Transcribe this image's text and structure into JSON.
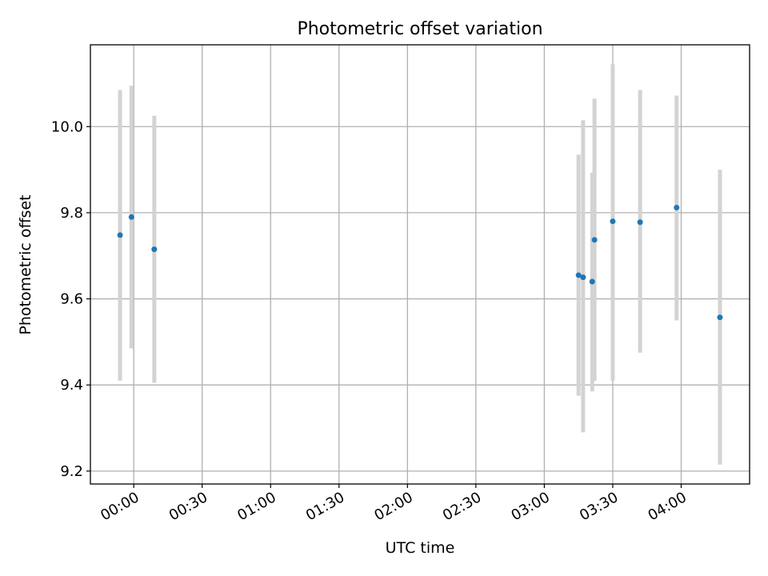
{
  "chart_data": {
    "type": "scatter",
    "title": "Photometric offset variation",
    "xlabel": "UTC time",
    "ylabel": "Photometric offset",
    "x_axis": "time",
    "xlim": [
      "23:41",
      "04:30"
    ],
    "ylim": [
      9.17,
      10.19
    ],
    "grid": true,
    "x_ticks": [
      "00:00",
      "00:30",
      "01:00",
      "01:30",
      "02:00",
      "02:30",
      "03:00",
      "03:30",
      "04:00"
    ],
    "y_ticks": [
      9.2,
      9.4,
      9.6,
      9.8,
      10.0
    ],
    "colors": {
      "marker": "#1f77b4",
      "errorbar": "#d3d3d3",
      "grid": "#b0b0b0"
    },
    "series": [
      {
        "points": [
          {
            "x": "23:54",
            "y": 9.748,
            "ylow": 9.41,
            "yhigh": 10.085
          },
          {
            "x": "23:59",
            "y": 9.79,
            "ylow": 9.485,
            "yhigh": 10.095
          },
          {
            "x": "00:09",
            "y": 9.715,
            "ylow": 9.405,
            "yhigh": 10.025
          },
          {
            "x": "03:15",
            "y": 9.655,
            "ylow": 9.375,
            "yhigh": 9.935
          },
          {
            "x": "03:17",
            "y": 9.65,
            "ylow": 9.29,
            "yhigh": 10.015
          },
          {
            "x": "03:21",
            "y": 9.64,
            "ylow": 9.385,
            "yhigh": 9.893
          },
          {
            "x": "03:22",
            "y": 9.737,
            "ylow": 9.41,
            "yhigh": 10.065
          },
          {
            "x": "03:30",
            "y": 9.78,
            "ylow": 9.41,
            "yhigh": 10.145
          },
          {
            "x": "03:42",
            "y": 9.778,
            "ylow": 9.475,
            "yhigh": 10.085
          },
          {
            "x": "03:58",
            "y": 9.812,
            "ylow": 9.55,
            "yhigh": 10.072
          },
          {
            "x": "04:17",
            "y": 9.557,
            "ylow": 9.215,
            "yhigh": 9.9
          }
        ]
      }
    ]
  }
}
